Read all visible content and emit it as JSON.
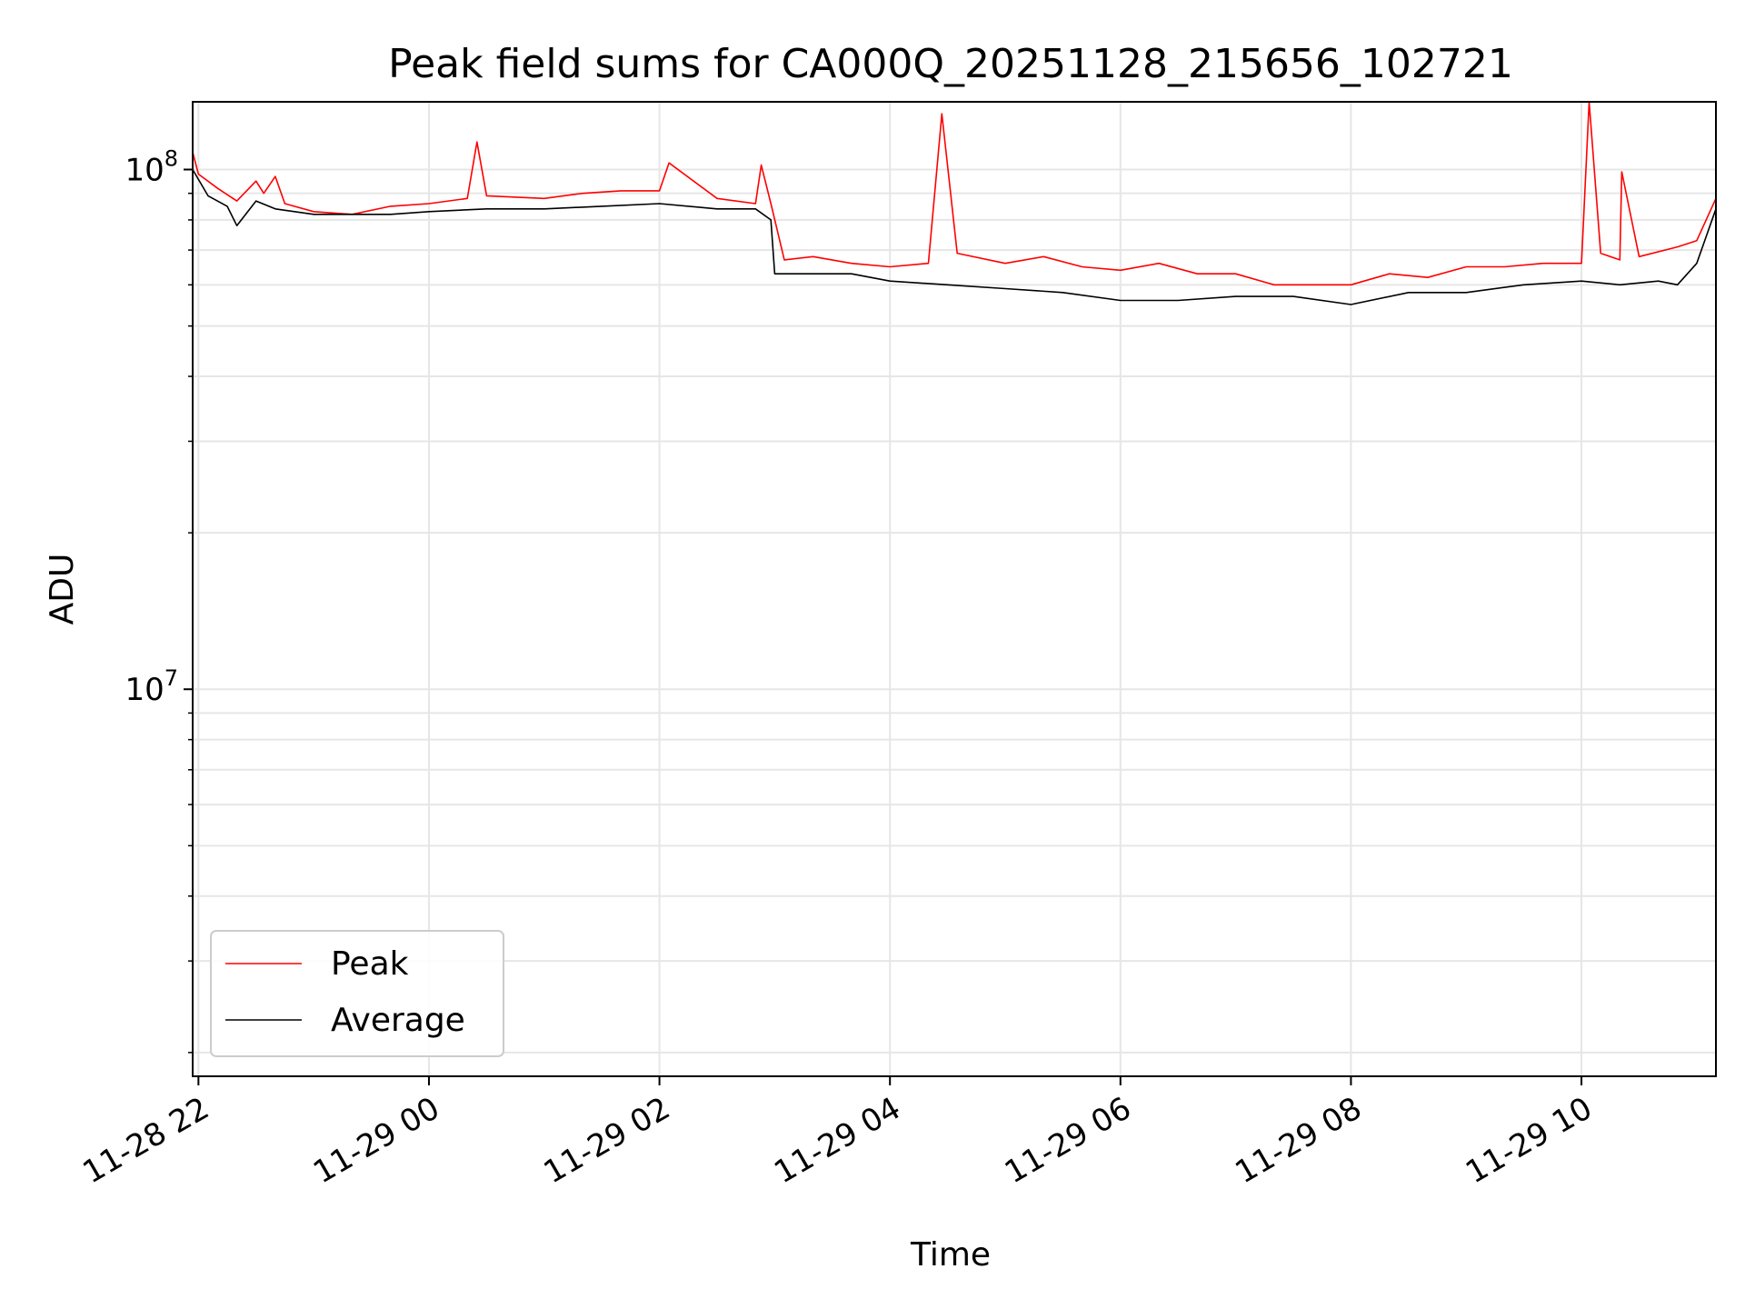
{
  "chart_data": {
    "type": "line",
    "title": "Peak field sums for CA000Q_20251128_215656_102721",
    "xlabel": "Time",
    "ylabel": "ADU",
    "yscale": "log",
    "ylim": [
      1800000,
      135000000
    ],
    "xlim": [
      "11-28 21:57",
      "11-29 11:10"
    ],
    "x_unit": "hours",
    "x_ticks": [
      {
        "value": 22,
        "label": "11-28 22"
      },
      {
        "value": 24,
        "label": "11-29 00"
      },
      {
        "value": 26,
        "label": "11-29 02"
      },
      {
        "value": 28,
        "label": "11-29 04"
      },
      {
        "value": 30,
        "label": "11-29 06"
      },
      {
        "value": 32,
        "label": "11-29 08"
      },
      {
        "value": 34,
        "label": "11-29 10"
      }
    ],
    "y_ticks": [
      {
        "value": 10000000,
        "base": "10",
        "exp": "7"
      },
      {
        "value": 100000000,
        "base": "10",
        "exp": "8"
      }
    ],
    "grid": true,
    "legend_position": "lower-left",
    "series": [
      {
        "name": "Peak",
        "color": "#ff0000",
        "x": [
          "11-28 21:57",
          "11-28 22:00",
          "11-28 22:10",
          "11-28 22:20",
          "11-28 22:30",
          "11-28 22:34",
          "11-28 22:40",
          "11-28 22:45",
          "11-28 23:00",
          "11-28 23:20",
          "11-28 23:40",
          "11-29 00:00",
          "11-29 00:20",
          "11-29 00:25",
          "11-29 00:30",
          "11-29 01:00",
          "11-29 01:20",
          "11-29 01:40",
          "11-29 02:00",
          "11-29 02:05",
          "11-29 02:30",
          "11-29 02:50",
          "11-29 02:53",
          "11-29 02:58",
          "11-29 03:05",
          "11-29 03:20",
          "11-29 03:40",
          "11-29 04:00",
          "11-29 04:20",
          "11-29 04:27",
          "11-29 04:35",
          "11-29 05:00",
          "11-29 05:20",
          "11-29 05:40",
          "11-29 06:00",
          "11-29 06:20",
          "11-29 06:40",
          "11-29 07:00",
          "11-29 07:20",
          "11-29 07:40",
          "11-29 08:00",
          "11-29 08:20",
          "11-29 08:40",
          "11-29 09:00",
          "11-29 09:20",
          "11-29 09:40",
          "11-29 10:00",
          "11-29 10:04",
          "11-29 10:10",
          "11-29 10:20",
          "11-29 10:21",
          "11-29 10:30",
          "11-29 10:50",
          "11-29 11:00",
          "11-29 11:10"
        ],
        "y": [
          108000000,
          98000000,
          92000000,
          87000000,
          95000000,
          90000000,
          97000000,
          86000000,
          83000000,
          82000000,
          85000000,
          86000000,
          88000000,
          113000000,
          89000000,
          88000000,
          90000000,
          91000000,
          91000000,
          103000000,
          88000000,
          86000000,
          102000000,
          86000000,
          67000000,
          68000000,
          66000000,
          65000000,
          66000000,
          128000000,
          69000000,
          66000000,
          68000000,
          65000000,
          64000000,
          66000000,
          63000000,
          63000000,
          60000000,
          60000000,
          60000000,
          63000000,
          62000000,
          65000000,
          65000000,
          66000000,
          66000000,
          135000000,
          69000000,
          67000000,
          99000000,
          68000000,
          71000000,
          73000000,
          88000000
        ]
      },
      {
        "name": "Average",
        "color": "#000000",
        "x": [
          "11-28 21:57",
          "11-28 22:05",
          "11-28 22:15",
          "11-28 22:20",
          "11-28 22:30",
          "11-28 22:40",
          "11-28 23:00",
          "11-28 23:20",
          "11-28 23:40",
          "11-29 00:00",
          "11-29 00:30",
          "11-29 01:00",
          "11-29 01:30",
          "11-29 02:00",
          "11-29 02:30",
          "11-29 02:50",
          "11-29 02:58",
          "11-29 03:00",
          "11-29 03:20",
          "11-29 03:40",
          "11-29 04:00",
          "11-29 04:30",
          "11-29 05:00",
          "11-29 05:30",
          "11-29 06:00",
          "11-29 06:30",
          "11-29 07:00",
          "11-29 07:30",
          "11-29 08:00",
          "11-29 08:30",
          "11-29 09:00",
          "11-29 09:30",
          "11-29 10:00",
          "11-29 10:20",
          "11-29 10:40",
          "11-29 10:50",
          "11-29 11:00",
          "11-29 11:10"
        ],
        "y": [
          100000000,
          89000000,
          85000000,
          78000000,
          87000000,
          84000000,
          82000000,
          82000000,
          82000000,
          83000000,
          84000000,
          84000000,
          85000000,
          86000000,
          84000000,
          84000000,
          80000000,
          63000000,
          63000000,
          63000000,
          61000000,
          60000000,
          59000000,
          58000000,
          56000000,
          56000000,
          57000000,
          57000000,
          55000000,
          58000000,
          58000000,
          60000000,
          61000000,
          60000000,
          61000000,
          60000000,
          66000000,
          84000000
        ]
      }
    ]
  }
}
